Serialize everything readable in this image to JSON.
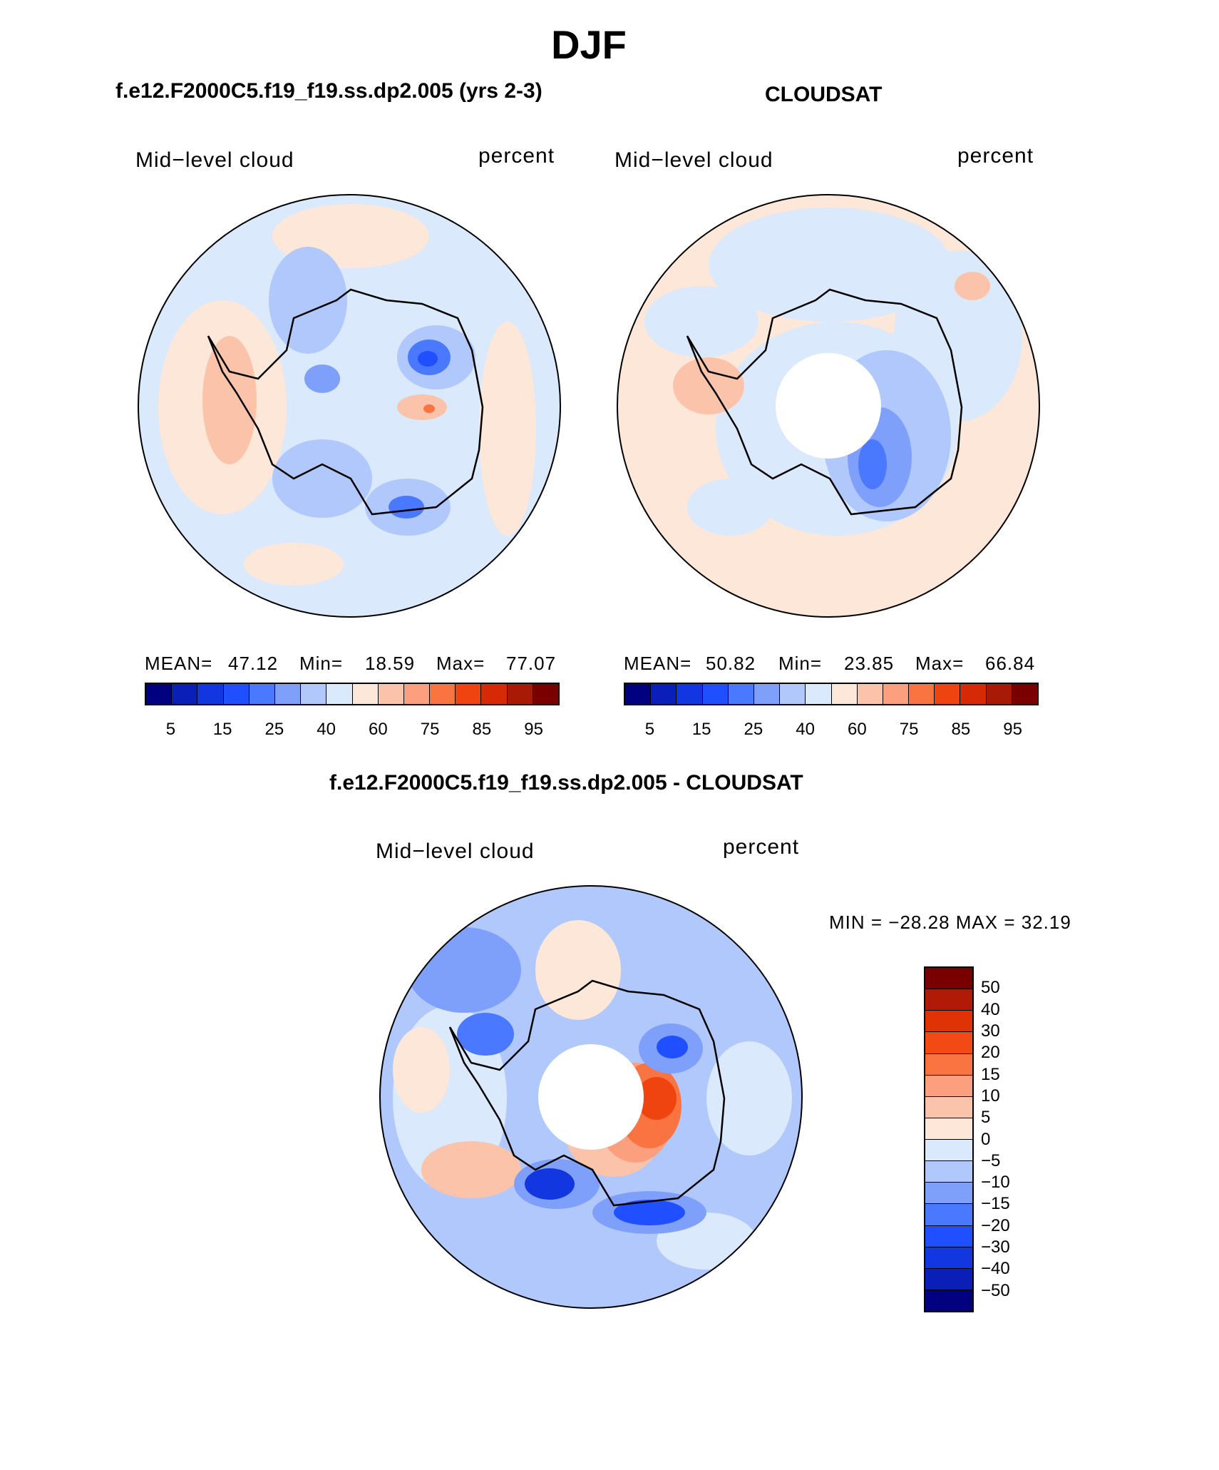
{
  "title": "DJF",
  "panels": {
    "model": {
      "header": "f.e12.F2000C5.f19_f19.ss.dp2.005 (yrs 2-3)",
      "left_label": "Mid−level cloud",
      "right_label": "percent",
      "stats": {
        "mean_label": "MEAN=",
        "mean": "47.12",
        "min_label": "Min=",
        "min": "18.59",
        "max_label": "Max=",
        "max": "77.07"
      }
    },
    "obs": {
      "header": "CLOUDSAT",
      "left_label": "Mid−level cloud",
      "right_label": "percent",
      "stats": {
        "mean_label": "MEAN=",
        "mean": "50.82",
        "min_label": "Min=",
        "min": "23.85",
        "max_label": "Max=",
        "max": "66.84"
      }
    },
    "diff": {
      "header": "f.e12.F2000C5.f19_f19.ss.dp2.005 - CLOUDSAT",
      "left_label": "Mid−level cloud",
      "right_label": "percent",
      "minmax": "MIN = −28.28 MAX =   32.19"
    }
  },
  "colorbar_abs": {
    "colors": [
      "#000080",
      "#0a1fb8",
      "#1236e0",
      "#1f4fff",
      "#4a78ff",
      "#7ea0fb",
      "#b0c8fb",
      "#dae9fb",
      "#fde7d8",
      "#fbc4aa",
      "#fb9f7e",
      "#f97440",
      "#f04410",
      "#d52a05",
      "#a81a06",
      "#7a0000"
    ],
    "ticks": [
      "5",
      "15",
      "25",
      "40",
      "60",
      "75",
      "85",
      "95"
    ]
  },
  "colorbar_diff": {
    "colors": [
      "#7a0000",
      "#b01a06",
      "#e03305",
      "#f24a14",
      "#f97440",
      "#fb9f7e",
      "#fbc4aa",
      "#fde7d8",
      "#dae9fb",
      "#b0c8fb",
      "#7ea0fb",
      "#4a78ff",
      "#1f4fff",
      "#1236e0",
      "#0a1fb8",
      "#000080"
    ],
    "ticks": [
      "50",
      "40",
      "30",
      "20",
      "15",
      "10",
      "5",
      "0",
      "−5",
      "−10",
      "−15",
      "−20",
      "−30",
      "−40",
      "−50"
    ]
  }
}
